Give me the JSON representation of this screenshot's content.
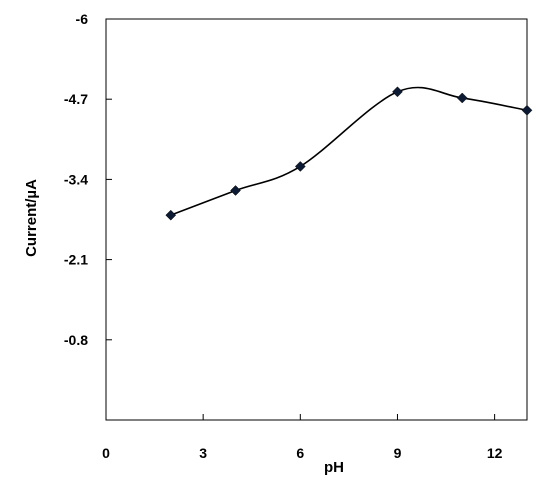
{
  "chart_data": {
    "type": "line",
    "title": "",
    "xlabel": "pH",
    "ylabel": "Current/µA",
    "xlim": [
      0,
      13
    ],
    "ylim": [
      -6,
      0.5
    ],
    "y_reversed": true,
    "x_ticks": [
      0,
      3,
      6,
      9,
      12
    ],
    "x_tick_labels": [
      "0",
      "3",
      "6",
      "9",
      "12"
    ],
    "y_ticks": [
      -6,
      -4.7,
      -3.4,
      -2.1,
      -0.8
    ],
    "y_tick_labels": [
      "-6",
      "-4.7",
      "-3.4",
      "-2.1",
      "-0.8"
    ],
    "grid": false,
    "legend": "none",
    "series": [
      {
        "x": [
          2,
          4,
          6,
          9,
          11,
          13
        ],
        "y": [
          -2.82,
          -3.22,
          -3.61,
          -4.82,
          -4.72,
          -4.52
        ],
        "marker": "diamond",
        "smooth": true,
        "color": "#000000"
      }
    ]
  }
}
